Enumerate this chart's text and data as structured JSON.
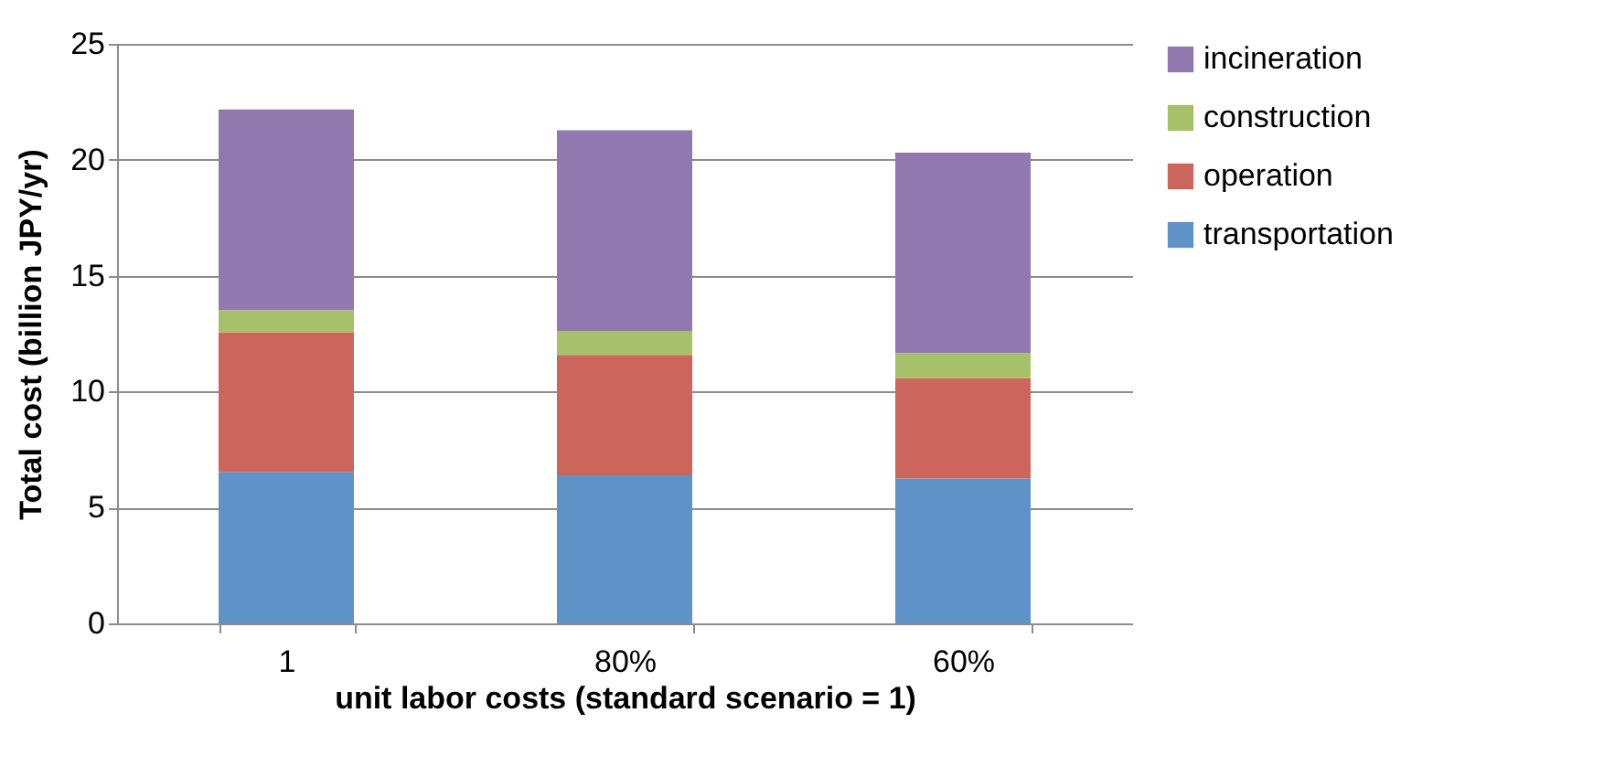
{
  "chart_data": {
    "type": "bar",
    "stacked": true,
    "xlabel": "unit labor costs (standard scenario = 1)",
    "ylabel": "Total cost (billion JPY/yr)",
    "categories": [
      "1",
      "80%",
      "60%"
    ],
    "series": [
      {
        "name": "transportation",
        "color": "#5f93c8",
        "values": [
          6.54,
          6.39,
          6.25
        ]
      },
      {
        "name": "operation",
        "color": "#cc665c",
        "values": [
          6.02,
          5.19,
          4.34
        ]
      },
      {
        "name": "construction",
        "color": "#a7c16a",
        "values": [
          0.96,
          1.04,
          1.07
        ]
      },
      {
        "name": "incineration",
        "color": "#9179b0",
        "values": [
          8.65,
          8.65,
          8.65
        ]
      }
    ],
    "ylim": [
      0,
      25
    ],
    "yticks": [
      0,
      5,
      10,
      15,
      20,
      25
    ],
    "grid": "y",
    "legend": "right"
  }
}
